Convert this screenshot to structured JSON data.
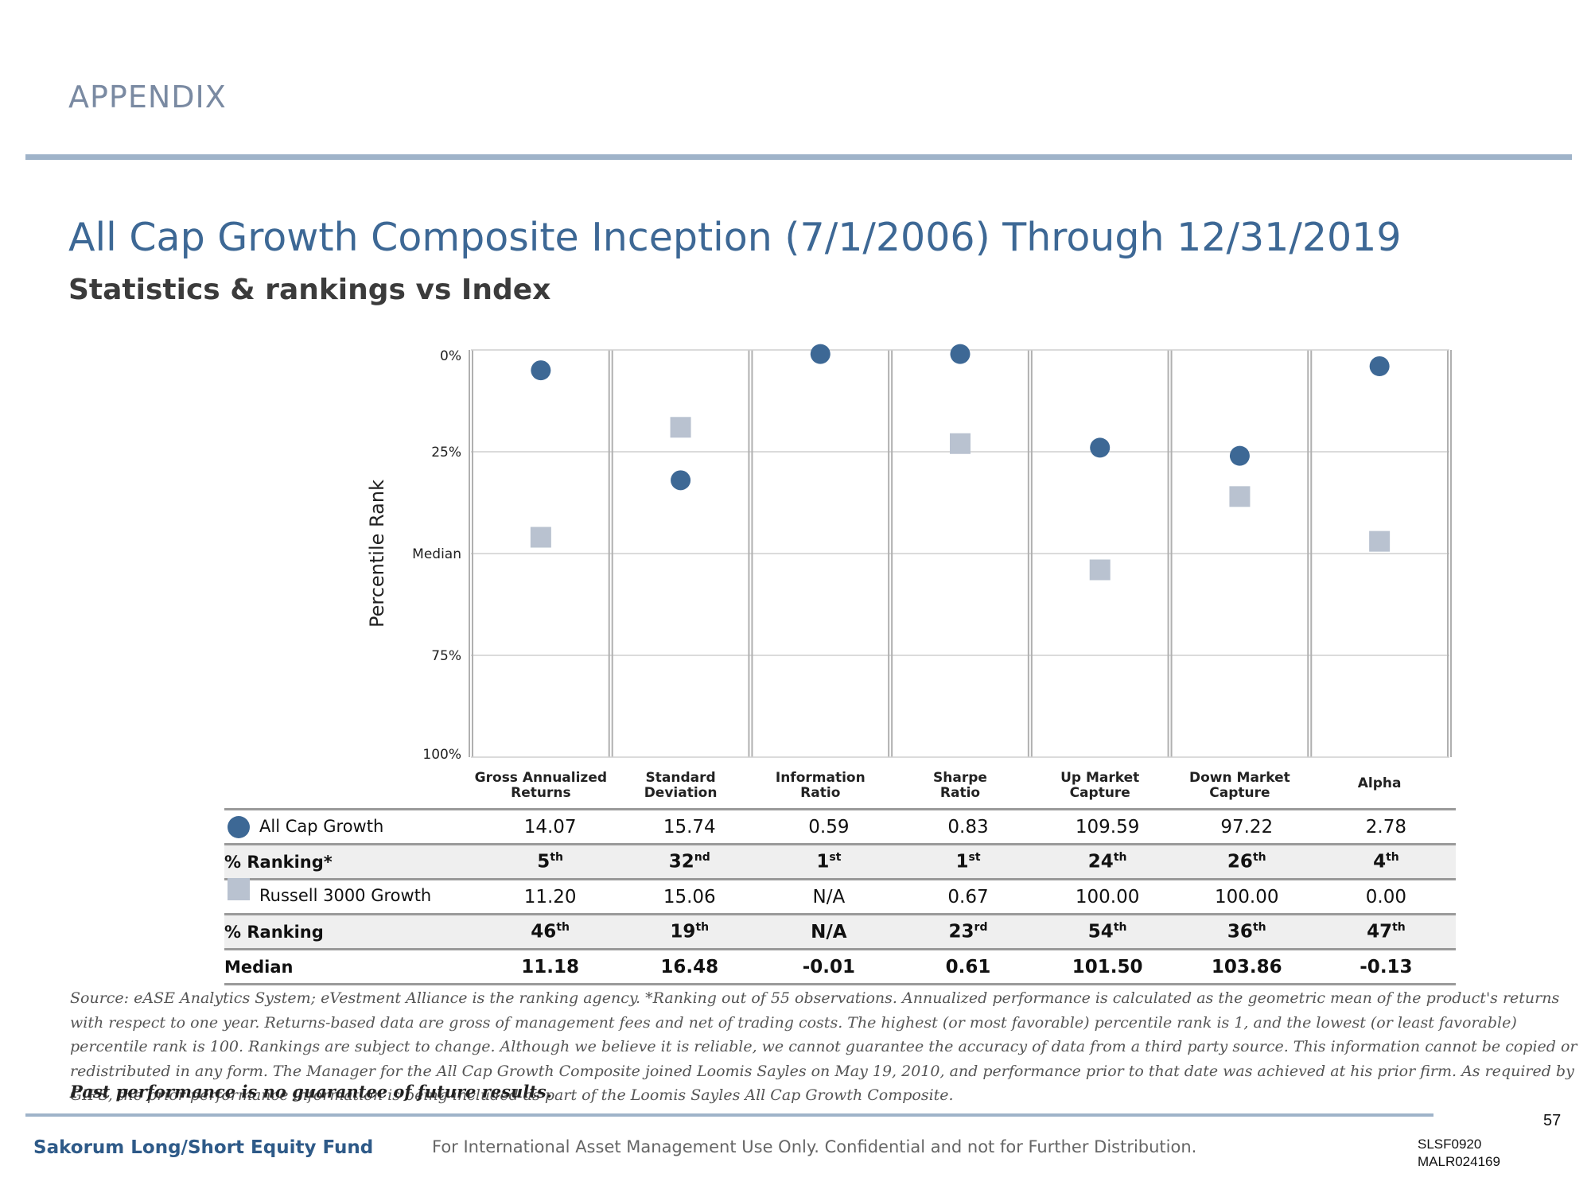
{
  "header": {
    "section_label": "APPENDIX"
  },
  "title": "All Cap Growth Composite Inception (7/1/2006) Through 12/31/2019",
  "subtitle": "Statistics & rankings vs Index",
  "chart_data": {
    "type": "scatter",
    "ylabel": "Percentile Rank",
    "y_axis_inverted": true,
    "ylim": [
      0,
      100
    ],
    "y_ticks": [
      {
        "value": 0,
        "label": "0%"
      },
      {
        "value": 25,
        "label": "25%"
      },
      {
        "value": 50,
        "label": "Median"
      },
      {
        "value": 75,
        "label": "75%"
      },
      {
        "value": 100,
        "label": "100%"
      }
    ],
    "grid": true,
    "categories": [
      [
        "Gross Annualized",
        "Returns"
      ],
      [
        "Standard",
        "Deviation"
      ],
      [
        "Information",
        "Ratio"
      ],
      [
        "Sharpe",
        "Ratio"
      ],
      [
        "Up Market",
        "Capture"
      ],
      [
        "Down Market",
        "Capture"
      ],
      [
        "Alpha"
      ]
    ],
    "series": [
      {
        "name": "All Cap Growth",
        "marker": "circle",
        "color": "#3d6895",
        "values": [
          5,
          32,
          1,
          1,
          24,
          26,
          4
        ]
      },
      {
        "name": "Russell 3000 Growth",
        "marker": "square",
        "color": "#b9c2d0",
        "values": [
          46,
          19,
          null,
          23,
          54,
          36,
          47
        ]
      }
    ]
  },
  "table": {
    "rows": [
      {
        "label": "All Cap Growth",
        "values": [
          "14.07",
          "15.74",
          "0.59",
          "0.83",
          "109.59",
          "97.22",
          "2.78"
        ]
      },
      {
        "label": "% Ranking*",
        "values": [
          [
            "5",
            "th"
          ],
          [
            "32",
            "nd"
          ],
          [
            "1",
            "st"
          ],
          [
            "1",
            "st"
          ],
          [
            "24",
            "th"
          ],
          [
            "26",
            "th"
          ],
          [
            "4",
            "th"
          ]
        ]
      },
      {
        "label": "Russell 3000 Growth",
        "values": [
          "11.20",
          "15.06",
          "N/A",
          "0.67",
          "100.00",
          "100.00",
          "0.00"
        ]
      },
      {
        "label": "% Ranking",
        "values": [
          [
            "46",
            "th"
          ],
          [
            "19",
            "th"
          ],
          [
            "N/A",
            ""
          ],
          [
            "23",
            "rd"
          ],
          [
            "54",
            "th"
          ],
          [
            "36",
            "th"
          ],
          [
            "47",
            "th"
          ]
        ]
      },
      {
        "label": "Median",
        "values": [
          "11.18",
          "16.48",
          "-0.01",
          "0.61",
          "101.50",
          "103.86",
          "-0.13"
        ]
      }
    ]
  },
  "source_note": "Source: eASE Analytics System;  eVestment Alliance is the ranking agency. *Ranking out of 55 observations. Annualized performance is calculated as the geometric mean of the product's returns with respect to one year. Returns-based data are gross of management fees and net of trading costs. The highest (or most favorable) percentile rank is 1, and the lowest (or least favorable) percentile rank is 100. Rankings are subject to change. Although we believe it is reliable, we cannot guarantee the accuracy of data from a third party source. This information cannot be copied or redistributed in any form.  The Manager for the All Cap Growth Composite joined Loomis Sayles on May 19, 2010, and performance prior to that date was achieved at his prior firm.  As required by GIPS, the prior performance information is being included as part of the Loomis Sayles All Cap Growth Composite.",
  "past_performance": "Past performance is no guarantee of future results.",
  "footer": {
    "page_number": "57",
    "fund_name": "Sakorum Long/Short Equity Fund",
    "confidentiality": "For International Asset Management Use Only. Confidential and not for Further Distribution.",
    "code_line1": "SLSF0920",
    "code_line2": "MALR024169"
  }
}
